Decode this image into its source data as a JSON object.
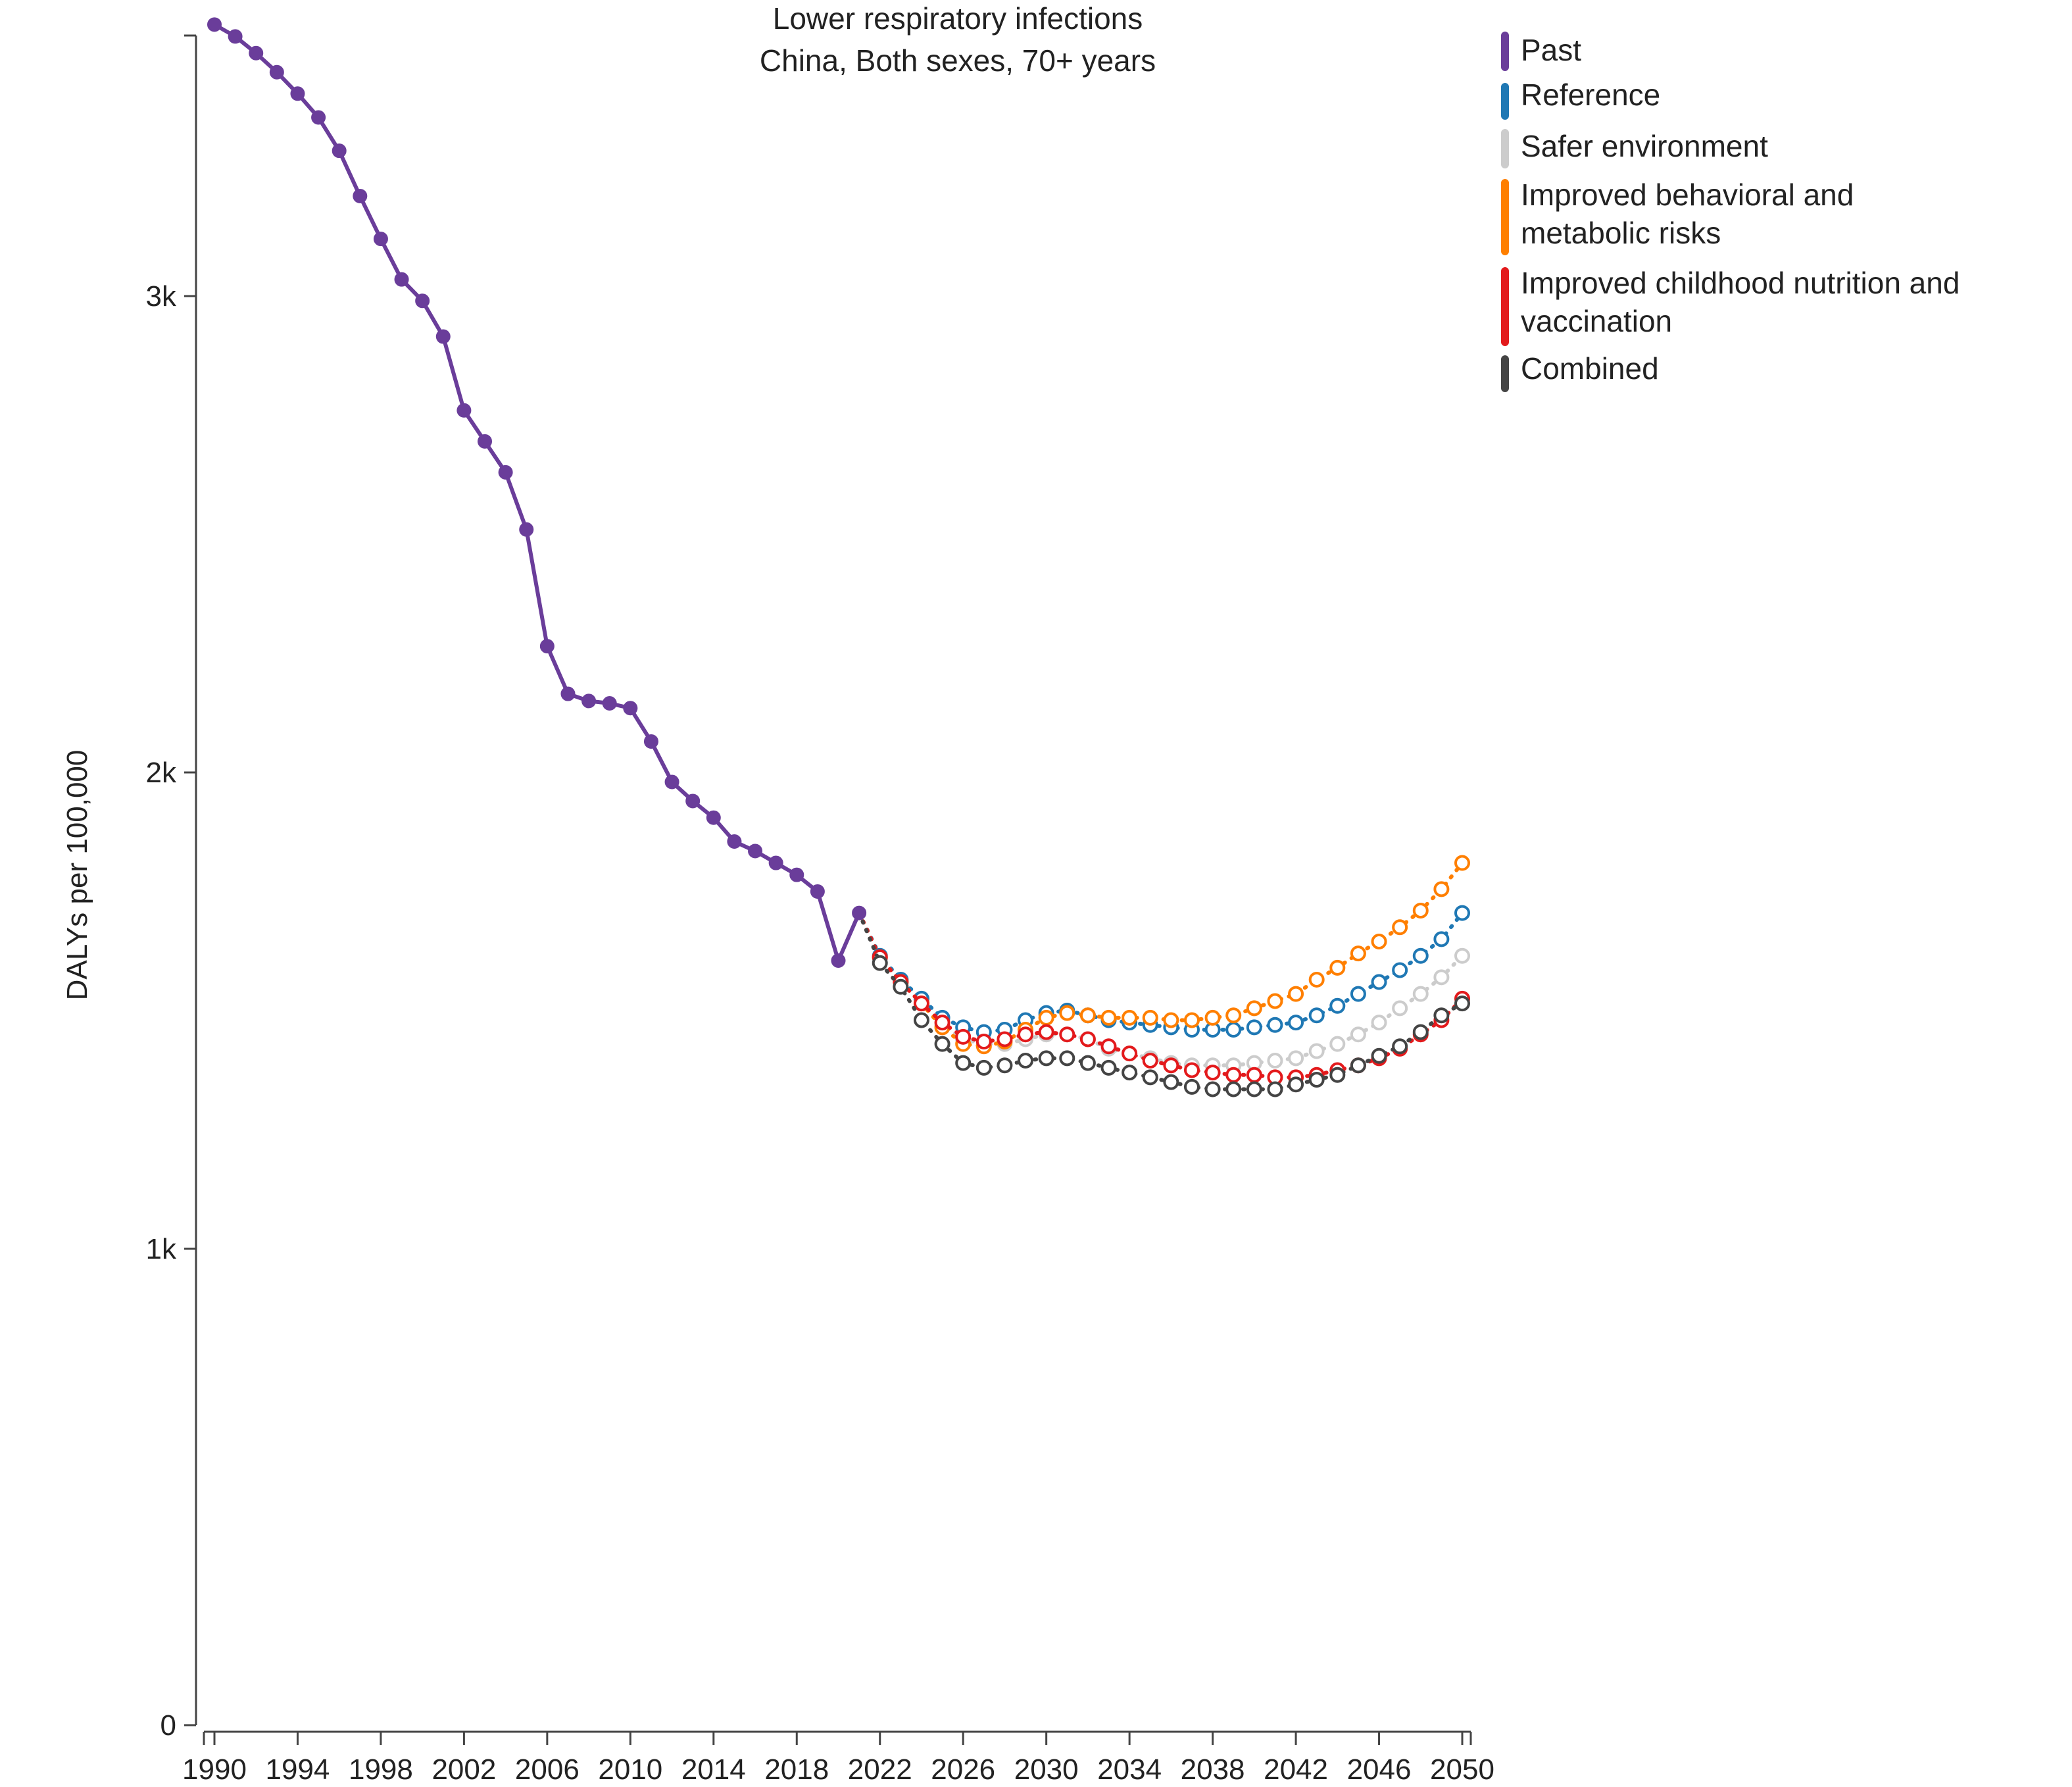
{
  "chart_data": {
    "type": "line",
    "title": "Lower respiratory infections",
    "subtitle": "China, Both sexes, 70+ years",
    "ylabel": "DALYs per 100,000",
    "xlabel": "",
    "xlim": [
      1990,
      2050
    ],
    "ylim": [
      0,
      3580
    ],
    "x_tick_values": [
      1990,
      1994,
      1998,
      2002,
      2006,
      2010,
      2014,
      2018,
      2022,
      2026,
      2030,
      2034,
      2038,
      2042,
      2046,
      2050
    ],
    "x_tick_labels": [
      "1990",
      "1994",
      "1998",
      "2002",
      "2006",
      "2010",
      "2014",
      "2018",
      "2022",
      "2026",
      "2030",
      "2034",
      "2038",
      "2042",
      "2046",
      "2050"
    ],
    "y_tick_values": [
      0,
      1000,
      2000,
      3000
    ],
    "y_tick_labels": [
      "0",
      "1k",
      "2k",
      "3k"
    ],
    "grid": false,
    "legend_position": "top-right",
    "series": [
      {
        "name": "Past",
        "color": "#6a3d9a",
        "style": "solid",
        "marker": "filled",
        "x": [
          1990,
          1991,
          1992,
          1993,
          1994,
          1995,
          1996,
          1997,
          1998,
          1999,
          2000,
          2001,
          2002,
          2003,
          2004,
          2005,
          2006,
          2007,
          2008,
          2009,
          2010,
          2011,
          2012,
          2013,
          2014,
          2015,
          2016,
          2017,
          2018,
          2019,
          2020,
          2021
        ],
        "values": [
          3570,
          3545,
          3510,
          3470,
          3425,
          3375,
          3305,
          3210,
          3120,
          3035,
          2990,
          2915,
          2760,
          2695,
          2630,
          2510,
          2265,
          2165,
          2150,
          2145,
          2135,
          2065,
          1980,
          1940,
          1905,
          1855,
          1835,
          1810,
          1785,
          1750,
          1605,
          1705
        ]
      },
      {
        "name": "Reference",
        "color": "#1f78b4",
        "style": "dotted",
        "marker": "open",
        "x": [
          2021,
          2022,
          2023,
          2024,
          2025,
          2026,
          2027,
          2028,
          2029,
          2030,
          2031,
          2032,
          2033,
          2034,
          2035,
          2036,
          2037,
          2038,
          2039,
          2040,
          2041,
          2042,
          2043,
          2044,
          2045,
          2046,
          2047,
          2048,
          2049,
          2050
        ],
        "values": [
          1705,
          1615,
          1565,
          1525,
          1485,
          1465,
          1455,
          1460,
          1480,
          1495,
          1500,
          1490,
          1480,
          1475,
          1470,
          1465,
          1460,
          1460,
          1460,
          1465,
          1470,
          1475,
          1490,
          1510,
          1535,
          1560,
          1585,
          1615,
          1650,
          1705
        ]
      },
      {
        "name": "Safer environment",
        "color": "#cccccc",
        "style": "dotted",
        "marker": "open",
        "x": [
          2021,
          2022,
          2023,
          2024,
          2025,
          2026,
          2027,
          2028,
          2029,
          2030,
          2031,
          2032,
          2033,
          2034,
          2035,
          2036,
          2037,
          2038,
          2039,
          2040,
          2041,
          2042,
          2043,
          2044,
          2045,
          2046,
          2047,
          2048,
          2049,
          2050
        ],
        "values": [
          1705,
          1610,
          1560,
          1515,
          1470,
          1440,
          1430,
          1430,
          1440,
          1450,
          1450,
          1440,
          1420,
          1410,
          1400,
          1390,
          1385,
          1385,
          1385,
          1390,
          1395,
          1400,
          1415,
          1430,
          1450,
          1475,
          1505,
          1535,
          1570,
          1615
        ]
      },
      {
        "name": "Improved behavioral and metabolic risks",
        "color": "#ff7f00",
        "style": "dotted",
        "marker": "open",
        "x": [
          2021,
          2022,
          2023,
          2024,
          2025,
          2026,
          2027,
          2028,
          2029,
          2030,
          2031,
          2032,
          2033,
          2034,
          2035,
          2036,
          2037,
          2038,
          2039,
          2040,
          2041,
          2042,
          2043,
          2044,
          2045,
          2046,
          2047,
          2048,
          2049,
          2050
        ],
        "values": [
          1705,
          1612,
          1560,
          1515,
          1465,
          1430,
          1425,
          1435,
          1460,
          1485,
          1495,
          1490,
          1485,
          1485,
          1485,
          1480,
          1480,
          1485,
          1490,
          1505,
          1520,
          1535,
          1565,
          1590,
          1620,
          1645,
          1675,
          1710,
          1755,
          1810
        ]
      },
      {
        "name": "Improved childhood nutrition and vaccination",
        "color": "#e31a1c",
        "style": "dotted",
        "marker": "open",
        "x": [
          2021,
          2022,
          2023,
          2024,
          2025,
          2026,
          2027,
          2028,
          2029,
          2030,
          2031,
          2032,
          2033,
          2034,
          2035,
          2036,
          2037,
          2038,
          2039,
          2040,
          2041,
          2042,
          2043,
          2044,
          2045,
          2046,
          2047,
          2048,
          2049,
          2050
        ],
        "values": [
          1705,
          1612,
          1560,
          1515,
          1475,
          1445,
          1435,
          1440,
          1450,
          1455,
          1450,
          1440,
          1425,
          1410,
          1395,
          1385,
          1375,
          1370,
          1365,
          1365,
          1360,
          1360,
          1365,
          1375,
          1385,
          1400,
          1420,
          1450,
          1480,
          1525
        ]
      },
      {
        "name": "Combined",
        "color": "#444444",
        "style": "dotted",
        "marker": "open",
        "x": [
          2021,
          2022,
          2023,
          2024,
          2025,
          2026,
          2027,
          2028,
          2029,
          2030,
          2031,
          2032,
          2033,
          2034,
          2035,
          2036,
          2037,
          2038,
          2039,
          2040,
          2041,
          2042,
          2043,
          2044,
          2045,
          2046,
          2047,
          2048,
          2049,
          2050
        ],
        "values": [
          1705,
          1600,
          1550,
          1480,
          1430,
          1390,
          1380,
          1385,
          1395,
          1400,
          1400,
          1390,
          1380,
          1370,
          1360,
          1350,
          1340,
          1335,
          1335,
          1335,
          1335,
          1345,
          1355,
          1365,
          1385,
          1405,
          1425,
          1455,
          1490,
          1515
        ]
      }
    ]
  }
}
